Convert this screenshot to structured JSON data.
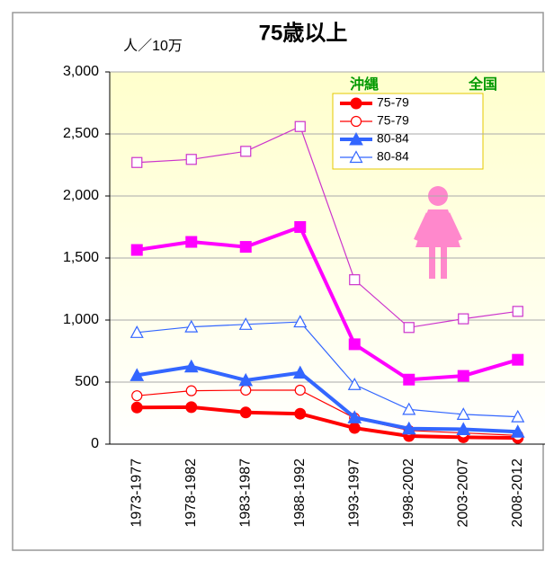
{
  "chart_data": {
    "type": "line",
    "title": "75歳以上",
    "y_label": "人／10万",
    "legend_headers": [
      "沖縄",
      "全国"
    ],
    "categories": [
      "1973-1977",
      "1978-1982",
      "1983-1987",
      "1988-1992",
      "1993-1997",
      "1998-2002",
      "2003-2007",
      "2008-2012"
    ],
    "series": [
      {
        "name": "75-79",
        "color": "#ff0000",
        "marker": "circle",
        "filled": true,
        "values": [
          295,
          298,
          255,
          245,
          130,
          65,
          55,
          50
        ]
      },
      {
        "name": "75-79",
        "color": "#ff0000",
        "marker": "circle",
        "filled": false,
        "values": [
          390,
          430,
          435,
          435,
          210,
          110,
          90,
          70
        ]
      },
      {
        "name": "80-84",
        "color": "#3366ff",
        "marker": "triangle",
        "filled": true,
        "values": [
          555,
          625,
          515,
          575,
          215,
          125,
          120,
          100
        ]
      },
      {
        "name": "80-84",
        "color": "#3366ff",
        "marker": "triangle",
        "filled": false,
        "values": [
          900,
          945,
          965,
          985,
          480,
          280,
          240,
          220
        ]
      },
      {
        "color": "#ff00ff",
        "marker": "square",
        "filled": true,
        "values": [
          1565,
          1630,
          1590,
          1750,
          805,
          520,
          550,
          680
        ]
      },
      {
        "color": "#cc33cc",
        "marker": "square",
        "filled": false,
        "values": [
          2270,
          2295,
          2360,
          2560,
          1325,
          940,
          1010,
          1070
        ]
      }
    ],
    "ylim": [
      0,
      3000
    ],
    "yticks": [
      0,
      500,
      {
        "value": 1000,
        "label": "1,000"
      },
      {
        "value": 1500,
        "label": "1,500"
      },
      {
        "value": 2000,
        "label": "2,000"
      },
      {
        "value": 2500,
        "label": "2,500"
      },
      {
        "value": 3000,
        "label": "3,000"
      }
    ],
    "grid": true
  }
}
